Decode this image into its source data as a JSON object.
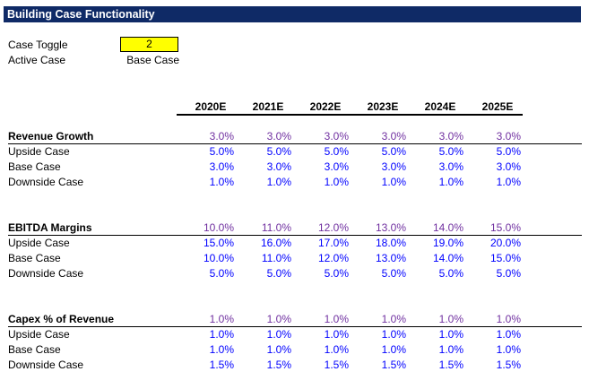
{
  "title": "Building Case Functionality",
  "case_toggle": {
    "label": "Case Toggle",
    "value": "2"
  },
  "active_case": {
    "label": "Active Case",
    "value": "Base Case"
  },
  "years": [
    "2020E",
    "2021E",
    "2022E",
    "2023E",
    "2024E",
    "2025E"
  ],
  "colors": {
    "title_bg": "#0f2a66",
    "toggle_bg": "#ffff00",
    "selected_text": "#7030a0",
    "input_text": "#0000ff"
  },
  "sections": [
    {
      "title": "Revenue Growth",
      "selected": [
        "3.0%",
        "3.0%",
        "3.0%",
        "3.0%",
        "3.0%",
        "3.0%"
      ],
      "rows": [
        {
          "label": "Upside Case",
          "values": [
            "5.0%",
            "5.0%",
            "5.0%",
            "5.0%",
            "5.0%",
            "5.0%"
          ]
        },
        {
          "label": "Base Case",
          "values": [
            "3.0%",
            "3.0%",
            "3.0%",
            "3.0%",
            "3.0%",
            "3.0%"
          ]
        },
        {
          "label": "Downside Case",
          "values": [
            "1.0%",
            "1.0%",
            "1.0%",
            "1.0%",
            "1.0%",
            "1.0%"
          ]
        }
      ]
    },
    {
      "title": "EBITDA Margins",
      "selected": [
        "10.0%",
        "11.0%",
        "12.0%",
        "13.0%",
        "14.0%",
        "15.0%"
      ],
      "rows": [
        {
          "label": "Upside Case",
          "values": [
            "15.0%",
            "16.0%",
            "17.0%",
            "18.0%",
            "19.0%",
            "20.0%"
          ]
        },
        {
          "label": "Base Case",
          "values": [
            "10.0%",
            "11.0%",
            "12.0%",
            "13.0%",
            "14.0%",
            "15.0%"
          ]
        },
        {
          "label": "Downside Case",
          "values": [
            "5.0%",
            "5.0%",
            "5.0%",
            "5.0%",
            "5.0%",
            "5.0%"
          ]
        }
      ]
    },
    {
      "title": "Capex % of Revenue",
      "selected": [
        "1.0%",
        "1.0%",
        "1.0%",
        "1.0%",
        "1.0%",
        "1.0%"
      ],
      "rows": [
        {
          "label": "Upside Case",
          "values": [
            "1.0%",
            "1.0%",
            "1.0%",
            "1.0%",
            "1.0%",
            "1.0%"
          ]
        },
        {
          "label": "Base Case",
          "values": [
            "1.0%",
            "1.0%",
            "1.0%",
            "1.0%",
            "1.0%",
            "1.0%"
          ]
        },
        {
          "label": "Downside Case",
          "values": [
            "1.5%",
            "1.5%",
            "1.5%",
            "1.5%",
            "1.5%",
            "1.5%"
          ]
        }
      ]
    }
  ]
}
